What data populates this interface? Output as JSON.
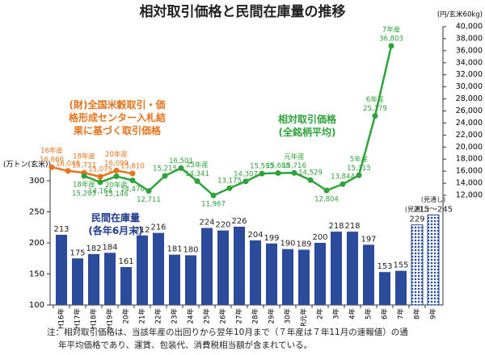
{
  "title": "相対取引価格と民間在庫量の推移",
  "note": [
    "注：相対取引価格は、当該年産の出回りから翌年10月まで（７年産は７年11月の速報値）の通",
    "年平均価格であり、運賃、包装代、消費税相当額が含まれている。"
  ],
  "chart_data": [
    {
      "type": "bar",
      "ylabel": "(万トン(玄米))",
      "categories": [
        "H16年",
        "H17年",
        "H18年",
        "H19年",
        "20年",
        "21年",
        "22年",
        "23年",
        "24年",
        "25年",
        "26年",
        "27年",
        "28年",
        "29年",
        "30年",
        "R元年",
        "2年",
        "3年",
        "4年",
        "5年",
        "6年",
        "7年",
        "8年",
        "9年"
      ],
      "ylim": [
        100,
        300
      ],
      "yticks": [
        100,
        150,
        200,
        250,
        300
      ],
      "series": [
        {
          "name": "民間在庫量\n(各年6月末)",
          "color": "#2b4c9b",
          "values": [
            213,
            175,
            182,
            184,
            161,
            212,
            216,
            181,
            180,
            224,
            220,
            226,
            204,
            199,
            190,
            189,
            200,
            218,
            218,
            197,
            153,
            155,
            null,
            null
          ]
        },
        {
          "name": "(見通し)",
          "color": "#2b4c9b",
          "hatched": true,
          "values": [
            null,
            null,
            null,
            null,
            null,
            null,
            null,
            null,
            null,
            null,
            null,
            null,
            null,
            null,
            null,
            null,
            null,
            null,
            null,
            null,
            null,
            null,
            229,
            245
          ],
          "lows": [
            null,
            null,
            null,
            null,
            null,
            null,
            null,
            null,
            null,
            null,
            null,
            null,
            null,
            null,
            null,
            null,
            null,
            null,
            null,
            null,
            null,
            null,
            null,
            215
          ],
          "value_labels": [
            null,
            null,
            null,
            null,
            null,
            null,
            null,
            null,
            null,
            null,
            null,
            null,
            null,
            null,
            null,
            null,
            null,
            null,
            null,
            null,
            null,
            null,
            "229",
            "215～245"
          ]
        }
      ]
    },
    {
      "type": "line",
      "ylabel": "(円/玄米60kg)",
      "axis_side": "right",
      "categories": [
        "16年産",
        null,
        "18年産",
        null,
        "20年産",
        null,
        null,
        null,
        null,
        "25年産",
        null,
        null,
        null,
        null,
        null,
        "元年産",
        null,
        null,
        null,
        "5年産",
        "6年産",
        "7年産"
      ],
      "ylim": [
        12000,
        40000
      ],
      "yticks": [
        {
          "value": 12000,
          "label": "12,000"
        },
        {
          "value": 14000,
          "label": "14,000"
        },
        {
          "value": 16000,
          "label": "16,000"
        },
        {
          "value": 18000,
          "label": "18,000"
        },
        {
          "value": 20000,
          "label": "20,000"
        },
        {
          "value": 22000,
          "label": "22,000"
        },
        {
          "value": 24000,
          "label": "24,000"
        },
        {
          "value": 26000,
          "label": "26,000"
        },
        {
          "value": 28000,
          "label": "28,000"
        },
        {
          "value": 30000,
          "label": "30,000"
        },
        {
          "value": 32000,
          "label": "32,000"
        },
        {
          "value": 34000,
          "label": "34,000"
        },
        {
          "value": 36000,
          "label": "36,000"
        },
        {
          "value": 38000,
          "label": "38,000"
        },
        {
          "value": 40000,
          "label": "40,000"
        }
      ],
      "series": [
        {
          "name": "(財)全国米穀取引・価\n格形成センター入札結\n果に基づく取引価格",
          "color": "#e8731c",
          "values": [
            16660,
            16048,
            15731,
            15075,
            16099,
            15610,
            null,
            null,
            null,
            null,
            null,
            null,
            null,
            null,
            null,
            null,
            null,
            null,
            null,
            null,
            null,
            null
          ],
          "value_labels": [
            "16,660",
            "16,048",
            "15,731",
            "15,075",
            "16,099",
            "15,610",
            null,
            null,
            null,
            null,
            null,
            null,
            null,
            null,
            null,
            null,
            null,
            null,
            null,
            null,
            null,
            null
          ]
        },
        {
          "name": "相対取引価格\n(全銘柄平均)",
          "color": "#2ea33a",
          "values": [
            null,
            null,
            15203,
            14164,
            15146,
            14470,
            12711,
            15215,
            16501,
            14341,
            11967,
            13175,
            14307,
            15595,
            15688,
            15716,
            14529,
            12804,
            13844,
            15315,
            25179,
            36803
          ],
          "value_labels": [
            null,
            null,
            "15,203",
            "14,164",
            "15,146",
            "14,470",
            "12,711",
            "15,215",
            "16,501",
            "14,341",
            "11,967",
            "13,175",
            "14,307",
            "15,595",
            "15,688",
            "15,716",
            "14,529",
            "12,804",
            "13,844",
            "15,315",
            "25,179",
            "36,803"
          ]
        }
      ]
    }
  ]
}
